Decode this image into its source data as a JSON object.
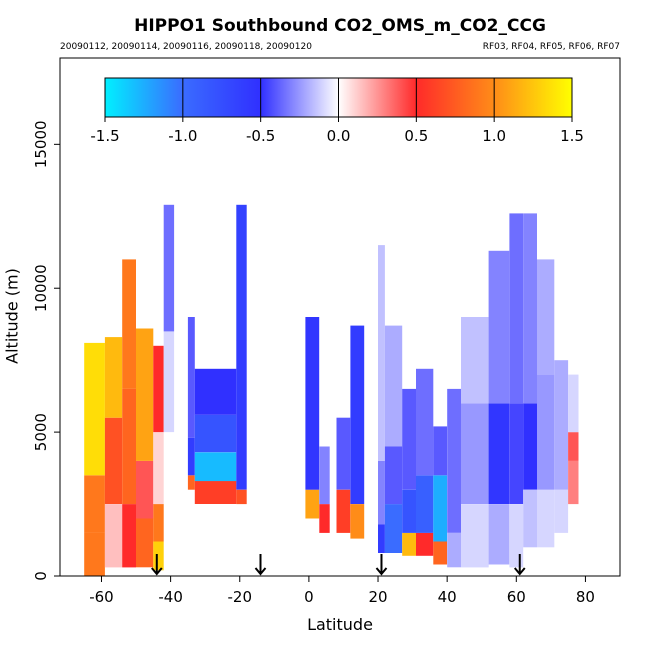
{
  "chart_data": {
    "type": "heatmap",
    "title": "HIPPO1 Southbound CO2_OMS_m_CO2_CCG",
    "subtitle_left": "20090112, 20090114, 20090116, 20090118, 20090120",
    "subtitle_right": "RF03, RF04, RF05, RF06, RF07",
    "xlabel": "Latitude",
    "ylabel": "Altitude (m)",
    "xlim": [
      -72,
      90
    ],
    "ylim": [
      0,
      18000
    ],
    "x_ticks": [
      -60,
      -40,
      -20,
      0,
      20,
      40,
      60,
      80
    ],
    "x_tick_labels": [
      "-60",
      "-40",
      "-20",
      "0",
      "20",
      "40",
      "60",
      "80"
    ],
    "y_ticks": [
      0,
      5000,
      10000,
      15000
    ],
    "y_tick_labels": [
      "0",
      "5000",
      "10000",
      "15000"
    ],
    "colorbar": {
      "range": [
        -1.5,
        1.5
      ],
      "ticks": [
        -1.5,
        -1.0,
        -0.5,
        0.0,
        0.5,
        1.0,
        1.5
      ],
      "tick_labels": [
        "-1.5",
        "-1.0",
        "-0.5",
        "0.0",
        "0.5",
        "1.0",
        "1.5"
      ],
      "colors": [
        "#00f0ff",
        "#3a6cff",
        "#3030ff",
        "#ffffff",
        "#ff2a2a",
        "#ff8c18",
        "#ffff00"
      ]
    },
    "arrows_latitude": [
      -44,
      -14,
      21,
      61
    ],
    "columns": [
      {
        "lat0": -65,
        "lat1": -59,
        "alt_top": 8100,
        "segments": [
          [
            0,
            1500,
            0.9
          ],
          [
            1500,
            3500,
            0.9
          ],
          [
            3500,
            8100,
            1.35
          ]
        ]
      },
      {
        "lat0": -59,
        "lat1": -54,
        "alt_top": 8300,
        "segments": [
          [
            300,
            2500,
            0.15
          ],
          [
            2500,
            5500,
            0.7
          ],
          [
            5500,
            8300,
            1.2
          ]
        ]
      },
      {
        "lat0": -54,
        "lat1": -50,
        "alt_top": 11000,
        "segments": [
          [
            300,
            2500,
            0.5
          ],
          [
            2500,
            6500,
            0.8
          ],
          [
            6500,
            11000,
            0.9
          ]
        ]
      },
      {
        "lat0": -50,
        "lat1": -45,
        "alt_top": 8600,
        "segments": [
          [
            300,
            2000,
            0.8
          ],
          [
            2000,
            4000,
            0.4
          ],
          [
            4000,
            8600,
            1.1
          ]
        ]
      },
      {
        "lat0": -45,
        "lat1": -42,
        "alt_top": 8000,
        "segments": [
          [
            200,
            1200,
            1.3
          ],
          [
            1200,
            2500,
            0.9
          ],
          [
            2500,
            5000,
            0.1
          ],
          [
            5000,
            8000,
            0.5
          ]
        ]
      },
      {
        "lat0": -42,
        "lat1": -39,
        "alt_top": 12900,
        "segments": [
          [
            5000,
            8500,
            -0.1
          ],
          [
            8500,
            12900,
            -0.35
          ]
        ]
      },
      {
        "lat0": -35,
        "lat1": -33,
        "alt_top": 9000,
        "segments": [
          [
            3000,
            3500,
            0.8
          ],
          [
            3500,
            4800,
            -0.6
          ],
          [
            4800,
            9000,
            -0.4
          ]
        ]
      },
      {
        "lat0": -33,
        "lat1": -21,
        "alt_top": 7200,
        "segments": [
          [
            2500,
            3300,
            0.6
          ],
          [
            3300,
            4300,
            -1.3
          ],
          [
            4300,
            5600,
            -0.8
          ],
          [
            5600,
            7200,
            -0.5
          ]
        ]
      },
      {
        "lat0": -21,
        "lat1": -18,
        "alt_top": 12900,
        "segments": [
          [
            2500,
            3000,
            0.7
          ],
          [
            3000,
            8200,
            -0.6
          ],
          [
            8200,
            12900,
            -0.65
          ]
        ]
      },
      {
        "lat0": -1,
        "lat1": 3,
        "alt_top": 9000,
        "segments": [
          [
            2000,
            3000,
            1.1
          ],
          [
            3000,
            9000,
            -0.55
          ]
        ]
      },
      {
        "lat0": 3,
        "lat1": 6,
        "alt_top": 4500,
        "segments": [
          [
            1500,
            2500,
            0.5
          ],
          [
            2500,
            4500,
            -0.3
          ]
        ]
      },
      {
        "lat0": 8,
        "lat1": 12,
        "alt_top": 5500,
        "segments": [
          [
            1500,
            3000,
            0.6
          ],
          [
            3000,
            5500,
            -0.4
          ]
        ]
      },
      {
        "lat0": 12,
        "lat1": 16,
        "alt_top": 8700,
        "segments": [
          [
            1300,
            2500,
            1.0
          ],
          [
            2500,
            8700,
            -0.6
          ]
        ]
      },
      {
        "lat0": 20,
        "lat1": 22,
        "alt_top": 11500,
        "segments": [
          [
            800,
            1800,
            -0.6
          ],
          [
            1800,
            4000,
            -0.3
          ],
          [
            4000,
            11500,
            -0.15
          ]
        ]
      },
      {
        "lat0": 22,
        "lat1": 27,
        "alt_top": 8700,
        "segments": [
          [
            800,
            2500,
            -1.0
          ],
          [
            2500,
            4500,
            -0.4
          ],
          [
            4500,
            8700,
            -0.2
          ]
        ]
      },
      {
        "lat0": 27,
        "lat1": 31,
        "alt_top": 6500,
        "segments": [
          [
            700,
            1500,
            1.2
          ],
          [
            1500,
            3000,
            -0.8
          ],
          [
            3000,
            6500,
            -0.4
          ]
        ]
      },
      {
        "lat0": 31,
        "lat1": 36,
        "alt_top": 7200,
        "segments": [
          [
            700,
            1500,
            0.5
          ],
          [
            1500,
            3500,
            -0.9
          ],
          [
            3500,
            7200,
            -0.35
          ]
        ]
      },
      {
        "lat0": 36,
        "lat1": 40,
        "alt_top": 5200,
        "segments": [
          [
            400,
            1200,
            0.8
          ],
          [
            1200,
            3500,
            -1.25
          ],
          [
            3500,
            5200,
            -0.4
          ]
        ]
      },
      {
        "lat0": 40,
        "lat1": 44,
        "alt_top": 6500,
        "segments": [
          [
            300,
            1500,
            -0.2
          ],
          [
            1500,
            6500,
            -0.35
          ]
        ]
      },
      {
        "lat0": 44,
        "lat1": 52,
        "alt_top": 9000,
        "segments": [
          [
            300,
            2500,
            -0.1
          ],
          [
            2500,
            6000,
            -0.25
          ],
          [
            6000,
            9000,
            -0.15
          ]
        ]
      },
      {
        "lat0": 52,
        "lat1": 58,
        "alt_top": 11300,
        "segments": [
          [
            400,
            2500,
            -0.2
          ],
          [
            2500,
            6000,
            -0.55
          ],
          [
            6000,
            11300,
            -0.3
          ]
        ]
      },
      {
        "lat0": 58,
        "lat1": 62,
        "alt_top": 12600,
        "segments": [
          [
            300,
            2500,
            -0.1
          ],
          [
            2500,
            6000,
            -0.45
          ],
          [
            6000,
            12600,
            -0.35
          ]
        ]
      },
      {
        "lat0": 62,
        "lat1": 66,
        "alt_top": 12600,
        "segments": [
          [
            1000,
            3000,
            -0.15
          ],
          [
            3000,
            6000,
            -0.5
          ],
          [
            6000,
            12600,
            -0.3
          ]
        ]
      },
      {
        "lat0": 66,
        "lat1": 71,
        "alt_top": 11000,
        "segments": [
          [
            1000,
            3000,
            -0.1
          ],
          [
            3000,
            7000,
            -0.25
          ],
          [
            7000,
            11000,
            -0.2
          ]
        ]
      },
      {
        "lat0": 71,
        "lat1": 75,
        "alt_top": 7500,
        "segments": [
          [
            1500,
            3000,
            -0.1
          ],
          [
            3000,
            7500,
            -0.2
          ]
        ]
      },
      {
        "lat0": 75,
        "lat1": 78,
        "alt_top": 7000,
        "segments": [
          [
            2500,
            4000,
            0.3
          ],
          [
            4000,
            5000,
            0.4
          ],
          [
            5000,
            7000,
            -0.1
          ]
        ]
      }
    ]
  }
}
